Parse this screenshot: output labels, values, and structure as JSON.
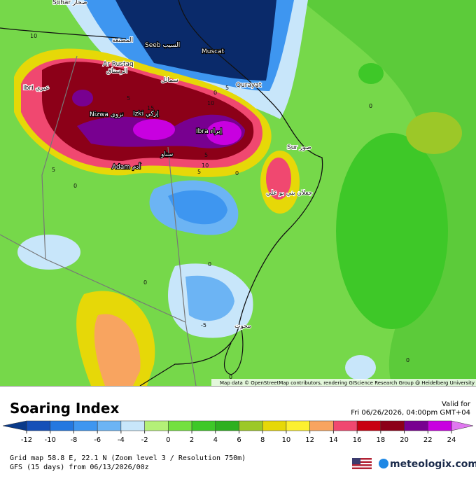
{
  "map": {
    "places": [
      "Sohar صحار",
      "المصنعة",
      "Seeb السيب",
      "Muscat",
      "Ar Rustaq",
      "الرستاق",
      "Ibri عبري",
      "سمائل",
      "Qurayat",
      "Nizwa نزوى",
      "Izki إزكي",
      "Ibra إبراء",
      "Sur صور",
      "سناو",
      "Adam أدم",
      "جعلان بني بو علي",
      "محوت"
    ],
    "contour_labels": [
      "10",
      "5",
      "0",
      "5",
      "15",
      "10",
      "5",
      "10",
      "0",
      "5",
      "5",
      "0",
      "0",
      "0",
      "0",
      "0",
      "-5",
      "0"
    ],
    "attribution": "Map data © OpenStreetMap contributors, rendering GIScience Research Group @ Heidelberg University"
  },
  "header": {
    "title": "Soaring Index",
    "valid_label": "Valid for",
    "valid_time": "Fri 06/26/2026, 04:00pm GMT+04"
  },
  "colorbar": {
    "ticks": [
      -12,
      -10,
      -8,
      -6,
      -4,
      -2,
      0,
      2,
      4,
      6,
      8,
      10,
      12,
      14,
      16,
      18,
      20,
      22,
      24
    ],
    "colors": [
      "#1650b8",
      "#2478e0",
      "#3e96f0",
      "#6cb4f4",
      "#c8e6fa",
      "#b4f078",
      "#74e040",
      "#3ec828",
      "#2eb020",
      "#9cc828",
      "#e6d808",
      "#fcf030",
      "#f8a460",
      "#f04870",
      "#c80010",
      "#8c0018",
      "#780090",
      "#c800e0"
    ],
    "under_color": "#0a3a8a",
    "over_color": "#e078f0"
  },
  "footer": {
    "grid": "Grid map 58.8 E, 22.1 N (Zoom level 3 / Resolution 750m)",
    "model": "GFS (15 days) from 06/13/2026/00z",
    "brand": "meteologix.com"
  }
}
